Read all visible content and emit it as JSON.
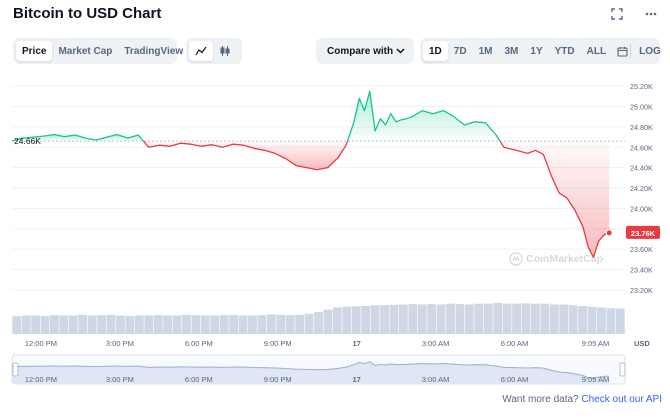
{
  "header": {
    "title": "Bitcoin to USD Chart",
    "icons": [
      "fullscreen-icon",
      "more-icon"
    ]
  },
  "tabs": {
    "type_tabs": [
      "Price",
      "Market Cap",
      "TradingView"
    ],
    "active_type": "Price",
    "chart_style_icons": [
      "line-chart-icon",
      "candlestick-icon"
    ],
    "compare_label": "Compare with",
    "ranges": [
      "1D",
      "7D",
      "1M",
      "3M",
      "1Y",
      "YTD",
      "ALL"
    ],
    "active_range": "1D",
    "calendar_icon": "calendar-icon",
    "log_label": "LOG"
  },
  "colors": {
    "up": "#16c784",
    "down": "#ea3943",
    "accent": "#3861fb",
    "volume": "#cfd6e4",
    "nav_line": "#a1b3d6"
  },
  "chart_data": {
    "type": "line",
    "currency": "USD",
    "baseline_label": "24.66K",
    "baseline_value": 24660,
    "current_label": "23.76K",
    "current_value": 23760,
    "y_ticks": [
      "25.20K",
      "25.00K",
      "24.80K",
      "24.60K",
      "24.40K",
      "24.20K",
      "24.00K",
      "23.80K",
      "23.60K",
      "23.40K",
      "23.20K"
    ],
    "ylim": [
      23140,
      25280
    ],
    "x_ticks": [
      "12:00 PM",
      "3:00 PM",
      "6:00 PM",
      "9:00 PM",
      "17",
      "3:00 AM",
      "6:00 AM",
      "9:05 AM"
    ],
    "x_tick_hours": [
      12,
      15,
      18,
      21,
      24,
      27,
      30,
      33.08
    ],
    "xlim": [
      10.9,
      34.2
    ],
    "series": [
      {
        "x": [
          10.9,
          11.3,
          11.7,
          12.1,
          12.5,
          12.9,
          13.3,
          13.7,
          14.1,
          14.5,
          14.9,
          15.3,
          15.7,
          16.1,
          16.5,
          16.9,
          17.3,
          17.7,
          18.1,
          18.5,
          18.9,
          19.3,
          19.7,
          20.1,
          20.5,
          20.9,
          21.3,
          21.7,
          22.1,
          22.5,
          22.9,
          23.3,
          23.6,
          23.9,
          24.1,
          24.3,
          24.5,
          24.7,
          24.9,
          25.1,
          25.3,
          25.5,
          25.7,
          25.9,
          26.1,
          26.5,
          26.9,
          27.3,
          27.7,
          28.1,
          28.5,
          28.9,
          29.1,
          29.3,
          29.6,
          29.9,
          30.2,
          30.5,
          30.8,
          31.1,
          31.4,
          31.7,
          32.0,
          32.3,
          32.6,
          32.8,
          33.0,
          33.2,
          33.4,
          33.6
        ],
        "y": [
          24660,
          24690,
          24700,
          24710,
          24725,
          24705,
          24720,
          24690,
          24670,
          24700,
          24725,
          24690,
          24720,
          24600,
          24620,
          24610,
          24640,
          24630,
          24610,
          24625,
          24600,
          24630,
          24620,
          24590,
          24570,
          24540,
          24490,
          24420,
          24400,
          24380,
          24400,
          24500,
          24620,
          24850,
          25080,
          24960,
          25150,
          24760,
          24880,
          24820,
          24930,
          24850,
          24870,
          24880,
          24900,
          24960,
          24930,
          24960,
          24900,
          24820,
          24850,
          24840,
          24780,
          24720,
          24600,
          24580,
          24560,
          24540,
          24570,
          24530,
          24320,
          24150,
          24100,
          23980,
          23820,
          23620,
          23520,
          23680,
          23740,
          23760
        ]
      }
    ],
    "volume_note": "bars",
    "volume": [
      0.48,
      0.5,
      0.5,
      0.49,
      0.51,
      0.5,
      0.5,
      0.52,
      0.5,
      0.51,
      0.52,
      0.5,
      0.49,
      0.5,
      0.5,
      0.51,
      0.5,
      0.5,
      0.52,
      0.51,
      0.5,
      0.5,
      0.51,
      0.52,
      0.5,
      0.5,
      0.51,
      0.53,
      0.52,
      0.51,
      0.52,
      0.55,
      0.6,
      0.66,
      0.72,
      0.74,
      0.75,
      0.76,
      0.78,
      0.78,
      0.79,
      0.8,
      0.81,
      0.8,
      0.81,
      0.8,
      0.82,
      0.81,
      0.8,
      0.82,
      0.82,
      0.84,
      0.82,
      0.82,
      0.83,
      0.82,
      0.82,
      0.8,
      0.8,
      0.78,
      0.76,
      0.74,
      0.72,
      0.7,
      0.69
    ],
    "watermark": "CoinMarketCap"
  },
  "footer": {
    "text": "Want more data?",
    "link": "Check out our API"
  }
}
